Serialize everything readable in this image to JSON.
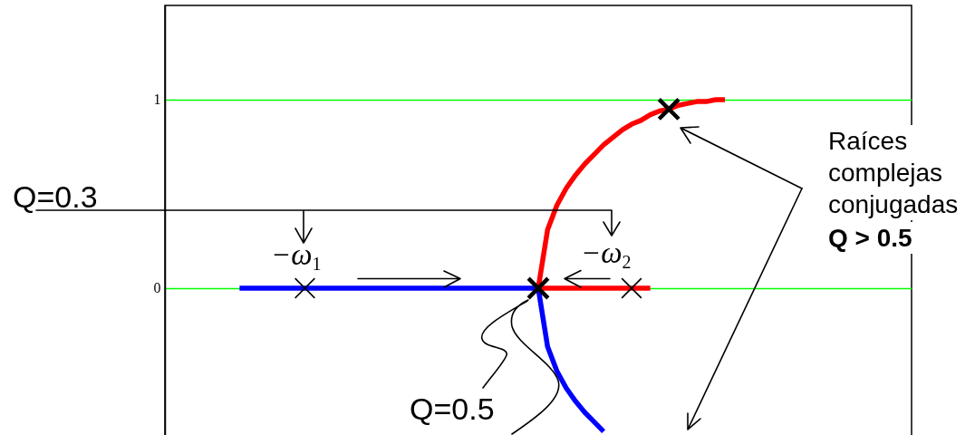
{
  "chart_data": {
    "type": "line",
    "categories": [
      null,
      null,
      null,
      null,
      null,
      null,
      null,
      null,
      null,
      null,
      null,
      null,
      null,
      null,
      null,
      null,
      null,
      null,
      null,
      null,
      null,
      null,
      null,
      null,
      null,
      null,
      null,
      null,
      null,
      null,
      null,
      null,
      null,
      null,
      null,
      null,
      null,
      null,
      null,
      null,
      null,
      null,
      null,
      null,
      null,
      null,
      null,
      null,
      null,
      null,
      null,
      null,
      null,
      null,
      null,
      null,
      null,
      null,
      null,
      null,
      null,
      null,
      null,
      null,
      null,
      null,
      null,
      null,
      null,
      null,
      null,
      null,
      null,
      null,
      null,
      null,
      null,
      null,
      null,
      null,
      null
    ],
    "series": [
      {
        "color": "#0000ff",
        "values": [
          null,
          null,
          null,
          null,
          null,
          null,
          null,
          null,
          0,
          0,
          0,
          0,
          0,
          0,
          0,
          0,
          0,
          0,
          0,
          0,
          0,
          0,
          0,
          0,
          0,
          0,
          0,
          0,
          0,
          0,
          0,
          0,
          0,
          0,
          0,
          0,
          0,
          0,
          0,
          0,
          0,
          -0.31,
          -0.44,
          -0.53,
          -0.6,
          -0.66,
          -0.71,
          -0.76,
          null,
          null,
          null,
          null,
          null,
          null,
          null,
          null,
          null,
          null,
          null,
          null,
          null,
          null,
          null,
          null,
          null,
          null,
          null,
          null,
          null,
          null,
          null,
          null,
          null,
          null,
          null,
          null,
          null,
          null,
          null,
          null,
          null
        ]
      },
      {
        "color": "#ff0000",
        "values": [
          null,
          null,
          null,
          null,
          null,
          null,
          null,
          null,
          null,
          null,
          null,
          null,
          null,
          null,
          null,
          null,
          null,
          null,
          null,
          null,
          null,
          null,
          null,
          null,
          null,
          null,
          null,
          null,
          null,
          null,
          null,
          null,
          null,
          null,
          null,
          null,
          null,
          null,
          null,
          null,
          0,
          0.31,
          0.44,
          0.53,
          0.6,
          0.66,
          0.71,
          0.76,
          0.8,
          0.84,
          0.87,
          0.89,
          0.92,
          0.94,
          0.95,
          0.97,
          0.98,
          0.99,
          0.99,
          1,
          1,
          null,
          null,
          null,
          null,
          null,
          null,
          null,
          null,
          null,
          null,
          null,
          null,
          null,
          null,
          null,
          null,
          null,
          null,
          null,
          null
        ]
      },
      {
        "color": "#ff0000",
        "values": [
          null,
          null,
          null,
          null,
          null,
          null,
          null,
          null,
          null,
          null,
          null,
          null,
          null,
          null,
          null,
          null,
          null,
          null,
          null,
          null,
          null,
          null,
          null,
          null,
          null,
          null,
          null,
          null,
          null,
          null,
          null,
          null,
          null,
          null,
          null,
          null,
          null,
          null,
          null,
          null,
          0,
          0,
          0,
          0,
          0,
          0,
          0,
          0,
          0,
          0,
          0,
          0,
          0,
          null,
          null,
          null,
          null,
          null,
          null,
          null,
          null,
          null,
          null,
          null,
          null,
          null,
          null,
          null,
          null,
          null,
          null,
          null,
          null,
          null,
          null,
          null,
          null,
          null,
          null,
          null,
          null
        ]
      },
      {
        "type": "scatter",
        "color": "#000000",
        "marker": "cross",
        "values": [
          null,
          null,
          null,
          null,
          null,
          null,
          null,
          null,
          null,
          null,
          null,
          null,
          null,
          null,
          null,
          0,
          null,
          null,
          null,
          null,
          null,
          null,
          null,
          null,
          null,
          null,
          null,
          null,
          null,
          null,
          null,
          null,
          null,
          null,
          null,
          null,
          null,
          null,
          null,
          null,
          null,
          null,
          null,
          null,
          null,
          null,
          null,
          null,
          null,
          null,
          0,
          null,
          null,
          null,
          null,
          null,
          null,
          null,
          null,
          null,
          null,
          null,
          null,
          null,
          null,
          null,
          null,
          null,
          null,
          null,
          null,
          null,
          null,
          null,
          null,
          null,
          null,
          null,
          null,
          null,
          null
        ]
      },
      {
        "type": "scatter",
        "color": "#000000",
        "marker": "cross",
        "values": [
          null,
          null,
          null,
          null,
          null,
          null,
          null,
          null,
          null,
          null,
          null,
          null,
          null,
          null,
          null,
          null,
          null,
          null,
          null,
          null,
          null,
          null,
          null,
          null,
          null,
          null,
          null,
          null,
          null,
          null,
          null,
          null,
          null,
          null,
          null,
          null,
          null,
          null,
          null,
          null,
          0,
          null,
          null,
          null,
          null,
          null,
          null,
          null,
          null,
          null,
          null,
          null,
          null,
          null,
          0.95,
          null,
          null,
          null,
          null,
          null,
          null,
          null,
          null,
          null,
          null,
          null,
          null,
          null,
          null,
          null,
          null,
          null,
          null,
          null,
          null,
          null,
          null,
          null,
          null,
          null,
          null
        ]
      }
    ],
    "ylim": [
      -0.8,
      1.5
    ],
    "yticks": [
      0,
      1
    ],
    "grid": "y",
    "tick_labels": "y",
    "annotations": [
      "Q=0.3",
      "−ω$_{1}$",
      "−ω$_{2}$",
      "Q=0.5",
      "Raíces complejas conjugadas",
      "Q > 0.5"
    ]
  }
}
